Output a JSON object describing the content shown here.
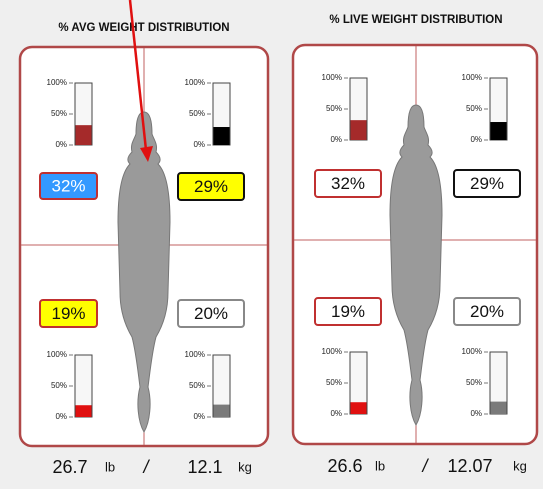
{
  "gauge_lim": [
    0,
    100
  ],
  "gauge_ticks": [
    {
      "value": 0,
      "label": "0%"
    },
    {
      "value": 50,
      "label": "50%"
    },
    {
      "value": 100,
      "label": "100%"
    }
  ],
  "panels": [
    {
      "title": "% AVG WEIGHT DISTRIBUTION",
      "quadrants": [
        {
          "value": 32,
          "label": "32%",
          "color": "#a52a2a"
        },
        {
          "value": 29,
          "label": "29%",
          "color": "#000000"
        },
        {
          "value": 19,
          "label": "19%",
          "color": "#e01010"
        },
        {
          "value": 20,
          "label": "20%",
          "color": "#7a7a7a"
        }
      ],
      "weight_lb": 26.7,
      "lb_unit": "lb",
      "separator": "/",
      "weight_kg": 12.1,
      "kg_unit": "kg"
    },
    {
      "title": "% LIVE WEIGHT DISTRIBUTION",
      "quadrants": [
        {
          "value": 32,
          "label": "32%",
          "color": "#a52a2a"
        },
        {
          "value": 29,
          "label": "29%",
          "color": "#000000"
        },
        {
          "value": 19,
          "label": "19%",
          "color": "#e01010"
        },
        {
          "value": 20,
          "label": "20%",
          "color": "#7a7a7a"
        }
      ],
      "weight_lb": 26.6,
      "lb_unit": "lb",
      "separator": "/",
      "weight_kg": 12.07,
      "kg_unit": "kg"
    }
  ]
}
